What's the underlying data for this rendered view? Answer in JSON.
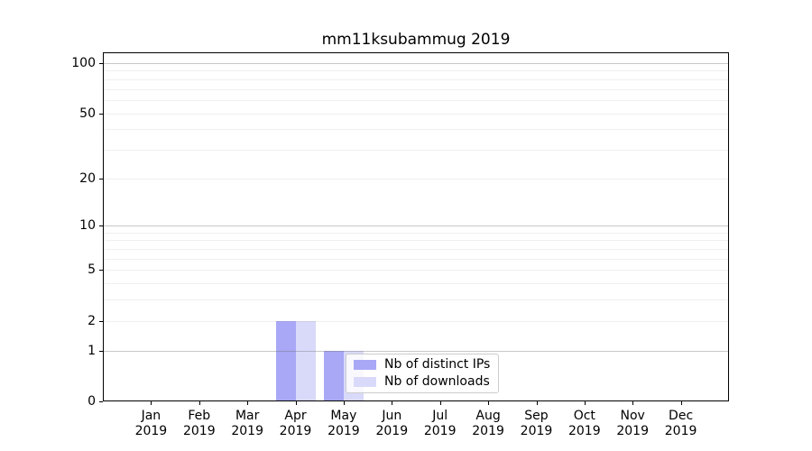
{
  "chart_data": {
    "type": "bar",
    "title": "mm11ksubammug 2019",
    "categories": [
      "Jan",
      "Feb",
      "Mar",
      "Apr",
      "May",
      "Jun",
      "Jul",
      "Aug",
      "Sep",
      "Oct",
      "Nov",
      "Dec"
    ],
    "x_year_label": "2019",
    "series": [
      {
        "name": "Nb of distinct IPs",
        "color": "#a8a8f6",
        "values": [
          0,
          0,
          0,
          2,
          1,
          0,
          0,
          0,
          0,
          0,
          0,
          0
        ]
      },
      {
        "name": "Nb of downloads",
        "color": "#d9d9fa",
        "values": [
          0,
          0,
          0,
          2,
          1,
          0,
          0,
          0,
          0,
          0,
          0,
          0
        ]
      }
    ],
    "xlabel": "",
    "ylabel": "",
    "y_scale": "log1p",
    "ylim": [
      0,
      116
    ],
    "y_ticks": [
      0,
      1,
      2,
      5,
      10,
      20,
      50,
      100
    ],
    "y_tick_labels": [
      "0",
      "1",
      "2",
      "5",
      "10",
      "20",
      "50",
      "100"
    ],
    "grid": {
      "orientation": "horizontal",
      "major_values": [
        1,
        10,
        100
      ],
      "minor_values": [
        2,
        3,
        4,
        5,
        6,
        7,
        8,
        9,
        20,
        30,
        40,
        50,
        60,
        70,
        80,
        90
      ]
    },
    "legend_position": "lower center-right, inside axes"
  },
  "colors": {
    "background": "#ffffff",
    "spine": "#000000",
    "bar_distinct_ips": "#a8a8f6",
    "bar_downloads": "#d9d9fa",
    "legend_border": "#cccccc"
  }
}
